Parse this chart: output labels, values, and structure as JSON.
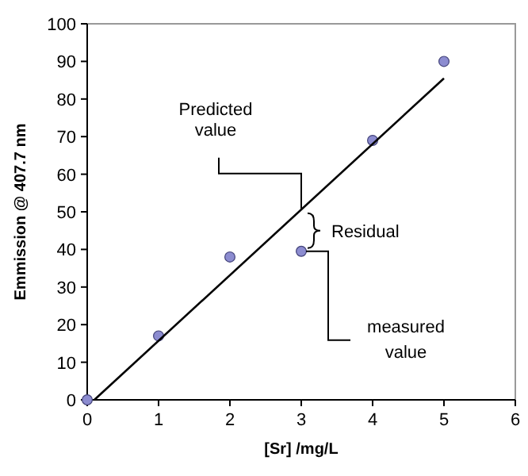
{
  "chart_data": {
    "type": "scatter",
    "xlabel": "[Sr] /mg/L",
    "ylabel": "Emmission @ 407.7 nm",
    "xlim": [
      0,
      6
    ],
    "xticks": [
      0,
      1,
      2,
      3,
      4,
      5,
      6
    ],
    "ylim": [
      0,
      100
    ],
    "yticks": [
      0,
      10,
      20,
      30,
      40,
      50,
      60,
      70,
      80,
      90,
      100
    ],
    "grid": false,
    "series": [
      {
        "x": [
          0,
          1,
          2,
          3,
          4,
          5
        ],
        "values": [
          0,
          17,
          38,
          39.5,
          69,
          90
        ],
        "color": "#8c8cd0",
        "marker": "circle"
      },
      {
        "type": "line",
        "x": [
          0.1,
          5
        ],
        "values": [
          0,
          85.5
        ],
        "color": "#000000",
        "marker": "none",
        "line_style": "solid"
      }
    ],
    "annotations": [
      {
        "text": "Predicted value",
        "x": 3,
        "y": 50.5
      },
      "Residual",
      {
        "text": "measured value",
        "x": 3,
        "y": 39.5
      }
    ]
  }
}
